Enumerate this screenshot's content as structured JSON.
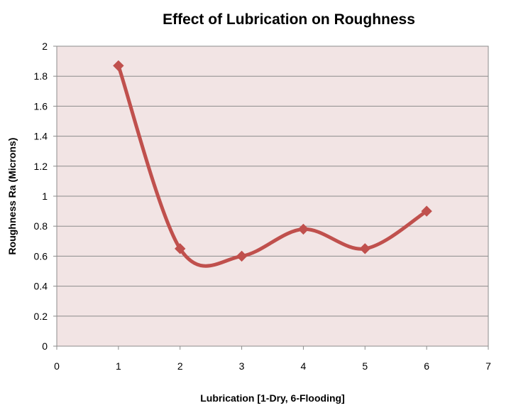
{
  "chart_data": {
    "type": "line",
    "title": "Effect of Lubrication on Roughness",
    "xlabel": "Lubrication [1-Dry, 6-Flooding]",
    "ylabel": "Roughness Ra (Microns)",
    "xlim": [
      0,
      7
    ],
    "ylim": [
      0,
      2
    ],
    "x_ticks": [
      "0",
      "1",
      "2",
      "3",
      "4",
      "5",
      "6",
      "7"
    ],
    "y_ticks": [
      "0",
      "0.2",
      "0.4",
      "0.6",
      "0.8",
      "1",
      "1.2",
      "1.4",
      "1.6",
      "1.8",
      "2"
    ],
    "grid": true,
    "smooth": true,
    "legend": "none",
    "series": [
      {
        "x": [
          1,
          2,
          3,
          4,
          5,
          6
        ],
        "values": [
          1.87,
          0.65,
          0.6,
          0.78,
          0.65,
          0.9
        ],
        "color": "#c0504d",
        "marker": "diamond"
      }
    ],
    "plot_background": "#f2e4e4"
  }
}
